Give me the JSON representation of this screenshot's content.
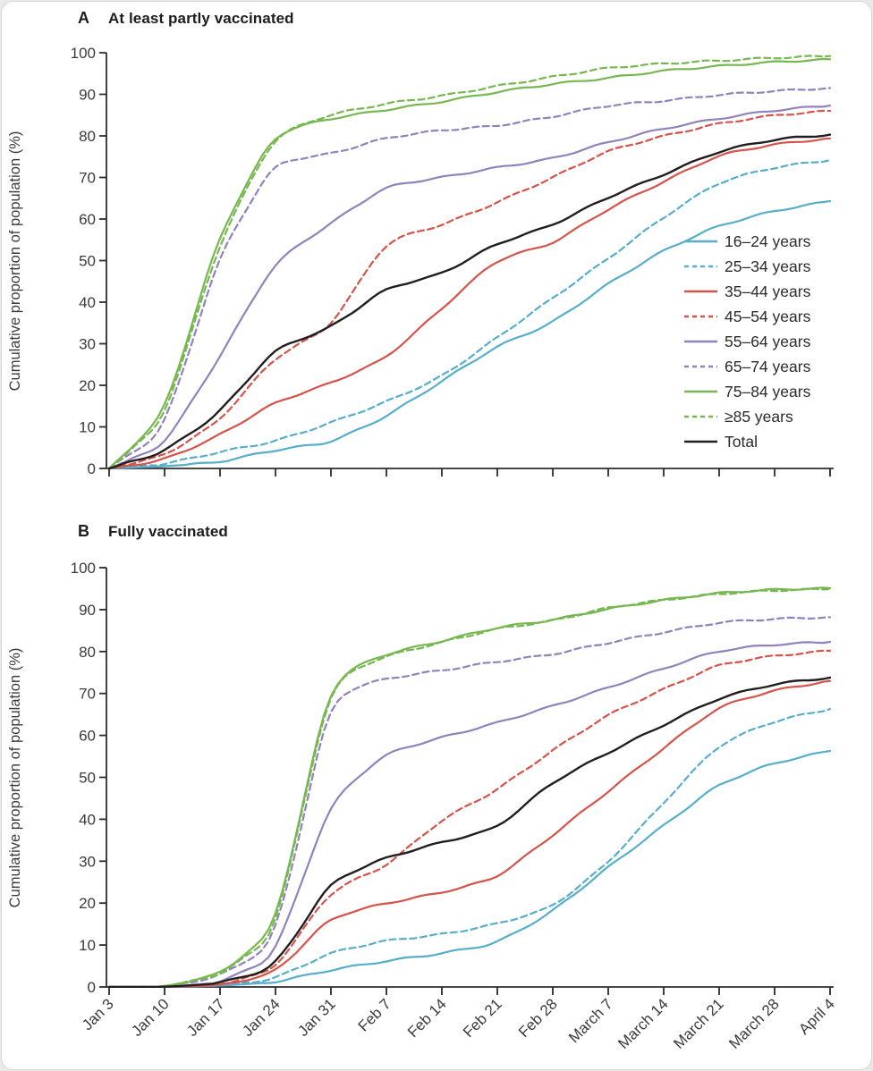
{
  "page": {
    "background": "#e9e9e9",
    "card_background": "#ffffff",
    "axis_color": "#2b2b2b",
    "text_color": "#3b3b3b"
  },
  "panels": [
    {
      "letter": "A",
      "title": "At least partly vaccinated"
    },
    {
      "letter": "B",
      "title": "Fully vaccinated"
    }
  ],
  "chart_data": [
    {
      "panel": "A",
      "type": "line",
      "title": "At least partly vaccinated",
      "ylabel": "Cumulative proportion of population (%)",
      "ylim": [
        0,
        100
      ],
      "y_tick_step": 10,
      "grid": false,
      "legend": true,
      "legend_position": "inside-right",
      "x": [
        "Jan 3",
        "Jan 10",
        "Jan 17",
        "Jan 24",
        "Jan 31",
        "Feb 7",
        "Feb 14",
        "Feb 21",
        "Feb 28",
        "March 7",
        "March 14",
        "March 21",
        "March 28",
        "April 4"
      ],
      "show_x_labels": false,
      "series": [
        {
          "name": "16–24 years",
          "color": "#56aecb",
          "dashed": false,
          "values": [
            0,
            0.5,
            1.5,
            4.5,
            6.2,
            12.5,
            21,
            29.5,
            35,
            44.5,
            52.5,
            58.5,
            62,
            64.3
          ]
        },
        {
          "name": "25–34 years",
          "color": "#56aecb",
          "dashed": true,
          "values": [
            0,
            1,
            4,
            6.5,
            11,
            16,
            22,
            31.5,
            41,
            50.5,
            60.5,
            69,
            72.5,
            74.2
          ]
        },
        {
          "name": "35–44 years",
          "color": "#d6534a",
          "dashed": false,
          "values": [
            0,
            2,
            8,
            16,
            20.5,
            26.5,
            38.5,
            50.5,
            54,
            62.5,
            69,
            75.5,
            78,
            79.4
          ]
        },
        {
          "name": "45–54 years",
          "color": "#d6534a",
          "dashed": true,
          "values": [
            0,
            3,
            11.5,
            27,
            34,
            55,
            58.5,
            64,
            70,
            76.5,
            80,
            83,
            85,
            86
          ]
        },
        {
          "name": "55–64 years",
          "color": "#9082bd",
          "dashed": false,
          "values": [
            0,
            5.5,
            27,
            50,
            59,
            68,
            70,
            72.4,
            74.5,
            78.5,
            81.8,
            84.2,
            86.2,
            87.3
          ]
        },
        {
          "name": "65–74 years",
          "color": "#9082bd",
          "dashed": true,
          "values": [
            0,
            9,
            52,
            74,
            75.6,
            79.6,
            81.4,
            82.4,
            84.6,
            87.4,
            88.4,
            89.9,
            90.8,
            91.5
          ]
        },
        {
          "name": "75–84 years",
          "color": "#76b84f",
          "dashed": false,
          "values": [
            0,
            12.8,
            57,
            81,
            84.2,
            86.3,
            88.2,
            90.6,
            92.5,
            93.9,
            95.7,
            96.8,
            97.8,
            98.4
          ]
        },
        {
          "name": "≥85 years",
          "color": "#76b84f",
          "dashed": true,
          "values": [
            0,
            11.5,
            55,
            80.5,
            85.2,
            87.8,
            89.6,
            92,
            94.2,
            96.4,
            97.4,
            98.1,
            98.8,
            99.2
          ]
        },
        {
          "name": "Total",
          "color": "#221e1f",
          "dashed": false,
          "values": [
            0,
            4,
            13.5,
            29,
            33.8,
            43.5,
            46.7,
            54.2,
            58.5,
            65.3,
            70.7,
            76.4,
            79.2,
            80.3
          ]
        }
      ]
    },
    {
      "panel": "B",
      "type": "line",
      "title": "Fully vaccinated",
      "ylabel": "Cumulative proportion of population (%)",
      "ylim": [
        0,
        100
      ],
      "y_tick_step": 10,
      "grid": false,
      "legend": false,
      "x": [
        "Jan 3",
        "Jan 10",
        "Jan 17",
        "Jan 24",
        "Jan 31",
        "Feb 7",
        "Feb 14",
        "Feb 21",
        "Feb 28",
        "March 7",
        "March 14",
        "March 21",
        "March 28",
        "April 4"
      ],
      "show_x_labels": true,
      "series": [
        {
          "name": "16–24 years",
          "color": "#56aecb",
          "dashed": false,
          "values": [
            0,
            0,
            0.3,
            1.1,
            4.1,
            6.2,
            8,
            10.4,
            18,
            28.6,
            38.5,
            48.5,
            53.5,
            56.3
          ]
        },
        {
          "name": "25–34 years",
          "color": "#56aecb",
          "dashed": true,
          "values": [
            0,
            0,
            0.3,
            1.9,
            8.3,
            11.1,
            12.5,
            15,
            19,
            29.6,
            44,
            58,
            63.5,
            66.3
          ]
        },
        {
          "name": "35–44 years",
          "color": "#d6534a",
          "dashed": false,
          "values": [
            0,
            0,
            0.4,
            3.2,
            16.8,
            20,
            22.5,
            26,
            36.2,
            46.7,
            57,
            67,
            70.8,
            73
          ]
        },
        {
          "name": "45–54 years",
          "color": "#d6534a",
          "dashed": true,
          "values": [
            0,
            0,
            0.5,
            4.1,
            23.2,
            28.8,
            40,
            47,
            56.5,
            65,
            71,
            77,
            79,
            80.2
          ]
        },
        {
          "name": "55–64 years",
          "color": "#9082bd",
          "dashed": false,
          "values": [
            0,
            0,
            1,
            7.2,
            44.6,
            55.9,
            59.5,
            63,
            67,
            71.4,
            76,
            80.3,
            81.7,
            82.3
          ]
        },
        {
          "name": "65–74 years",
          "color": "#9082bd",
          "dashed": true,
          "values": [
            0,
            0,
            2.5,
            10.4,
            70,
            73.6,
            75.5,
            77.6,
            79.3,
            82.1,
            84.6,
            87,
            87.8,
            88.2
          ]
        },
        {
          "name": "75–84 years",
          "color": "#76b84f",
          "dashed": false,
          "values": [
            0,
            0,
            3,
            13.6,
            74,
            79.5,
            82.5,
            85.8,
            87.5,
            90.2,
            92.3,
            94,
            94.8,
            95.1
          ]
        },
        {
          "name": "≥85 years",
          "color": "#76b84f",
          "dashed": true,
          "values": [
            0,
            0,
            2.8,
            12.3,
            73.5,
            79,
            82.2,
            85.5,
            87.3,
            90.5,
            92.3,
            93.8,
            94.6,
            94.9
          ]
        },
        {
          "name": "Total",
          "color": "#221e1f",
          "dashed": false,
          "values": [
            0,
            0,
            0.8,
            4.7,
            25.4,
            30.9,
            34.5,
            37.8,
            49,
            55.9,
            62.5,
            69,
            72.3,
            73.8
          ]
        }
      ]
    }
  ]
}
